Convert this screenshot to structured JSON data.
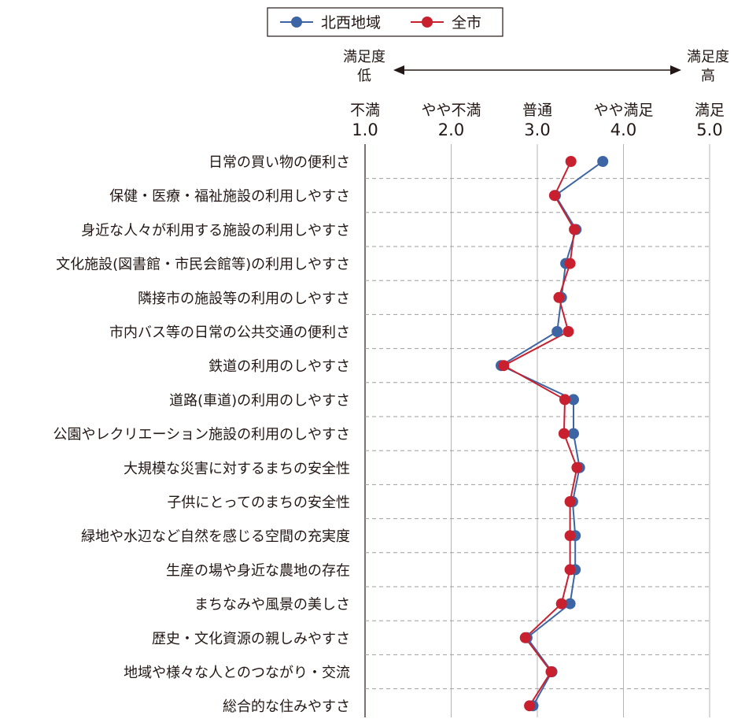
{
  "chart_data": {
    "type": "line",
    "orientation": "horizontal-value-axis",
    "legend": {
      "placement": "top-center",
      "entries": [
        "北西地域",
        "全市"
      ]
    },
    "scale_direction": {
      "low_label": "満足度",
      "low_sub": "低",
      "high_label": "満足度",
      "high_sub": "高"
    },
    "x_ticks": [
      {
        "label": "不満",
        "value": "1.0"
      },
      {
        "label": "やや不満",
        "value": "2.0"
      },
      {
        "label": "普通",
        "value": "3.0"
      },
      {
        "label": "やや満足",
        "value": "4.0"
      },
      {
        "label": "満足",
        "value": "5.0"
      }
    ],
    "xlim": [
      1.0,
      5.0
    ],
    "grid": true,
    "categories": [
      "日常の買い物の便利さ",
      "保健・医療・福祉施設の利用しやすさ",
      "身近な人々が利用する施設の利用しやすさ",
      "文化施設(図書館・市民会館等)の利用しやすさ",
      "隣接市の施設等の利用のしやすさ",
      "市内バス等の日常の公共交通の便利さ",
      "鉄道の利用のしやすさ",
      "道路(車道)の利用のしやすさ",
      "公園やレクリエーション施設の利用のしやすさ",
      "大規模な災害に対するまちの安全性",
      "子供にとってのまちの安全性",
      "緑地や水辺など自然を感じる空間の充実度",
      "生産の場や身近な農地の存在",
      "まちなみや風景の美しさ",
      "歴史・文化資源の親しみやすさ",
      "地域や様々な人とのつながり・交流",
      "総合的な住みやすさ"
    ],
    "series": [
      {
        "name": "北西地域",
        "color": "#3d65a3",
        "values": [
          3.76,
          3.21,
          3.45,
          3.33,
          3.28,
          3.23,
          2.58,
          3.42,
          3.42,
          3.49,
          3.41,
          3.44,
          3.44,
          3.38,
          2.88,
          3.17,
          2.95
        ]
      },
      {
        "name": "全市",
        "color": "#c8202e",
        "values": [
          3.39,
          3.2,
          3.43,
          3.38,
          3.25,
          3.36,
          2.61,
          3.32,
          3.31,
          3.46,
          3.38,
          3.38,
          3.38,
          3.28,
          2.86,
          3.16,
          2.91
        ]
      }
    ]
  }
}
